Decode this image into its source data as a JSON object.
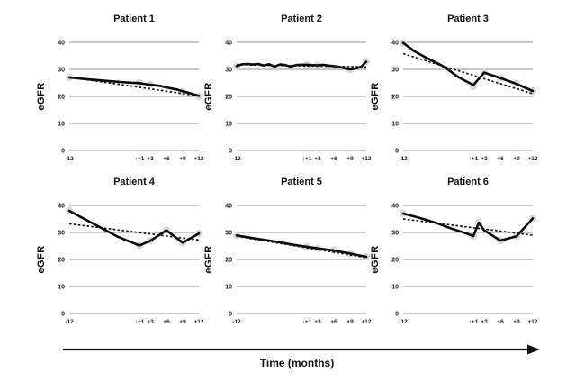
{
  "figure": {
    "xlabel": "Time (months)"
  },
  "axis": {
    "ylabel": "eGFR",
    "ylim": [
      0,
      40
    ],
    "yticks": [
      0,
      10,
      20,
      30,
      40
    ],
    "xticks": [
      {
        "label": "-12",
        "m": -12
      },
      {
        "label": "↑+1",
        "m": 1
      },
      {
        "label": "+3",
        "m": 3
      },
      {
        "label": "+6",
        "m": 6
      },
      {
        "label": "+9",
        "m": 9
      },
      {
        "label": "+12",
        "m": 12
      }
    ]
  },
  "colors": {
    "grid": "#a8a8a8",
    "line": "#0b0b0b",
    "marker": "#d8d8d8",
    "trend": "#161616"
  },
  "chart_data": [
    {
      "type": "line",
      "title": "Patient 1",
      "xlabel": "Time (months)",
      "ylabel": "eGFR",
      "ylim": [
        0,
        40
      ],
      "series": [
        {
          "name": "eGFR",
          "style": "solid",
          "points": [
            [
              -12,
              27
            ],
            [
              -9,
              26.4
            ],
            [
              -6,
              25.9
            ],
            [
              -3,
              25.4
            ],
            [
              -1,
              25.1
            ],
            [
              1,
              24.9
            ],
            [
              3,
              24.3
            ],
            [
              5,
              23.8
            ],
            [
              6,
              23.3
            ],
            [
              7,
              22.9
            ],
            [
              8,
              22.5
            ],
            [
              9,
              21.9
            ],
            [
              10,
              21.4
            ],
            [
              11,
              20.8
            ],
            [
              12,
              20.2
            ]
          ]
        },
        {
          "name": "visit markers",
          "style": "markers",
          "points": [
            [
              -12,
              27
            ],
            [
              1,
              25
            ],
            [
              3,
              24.4
            ],
            [
              9,
              21.6
            ],
            [
              12,
              20.1
            ]
          ]
        },
        {
          "name": "linear trend",
          "style": "dashed",
          "points": [
            [
              -12,
              27.1
            ],
            [
              12,
              20.2
            ]
          ]
        }
      ]
    },
    {
      "type": "line",
      "title": "Patient 2",
      "xlabel": "Time (months)",
      "ylabel": "eGFR",
      "ylim": [
        0,
        40
      ],
      "series": [
        {
          "name": "eGFR",
          "style": "solid",
          "points": [
            [
              -12,
              31.2
            ],
            [
              -11,
              31.9
            ],
            [
              -10,
              32
            ],
            [
              -9,
              31.8
            ],
            [
              -8,
              32
            ],
            [
              -7,
              31.4
            ],
            [
              -6,
              31.9
            ],
            [
              -5,
              31
            ],
            [
              -4,
              31.8
            ],
            [
              -3,
              31.6
            ],
            [
              -2,
              31
            ],
            [
              -1,
              31.6
            ],
            [
              0,
              31.7
            ],
            [
              1,
              31.7
            ],
            [
              2,
              31.6
            ],
            [
              3,
              31.5
            ],
            [
              4,
              31.7
            ],
            [
              5,
              31.4
            ],
            [
              6,
              31.2
            ],
            [
              7,
              30.9
            ],
            [
              8,
              30.4
            ],
            [
              9,
              30
            ],
            [
              10,
              30.3
            ],
            [
              11,
              30.9
            ],
            [
              12,
              32.8
            ]
          ]
        },
        {
          "name": "visit markers",
          "style": "markers",
          "points": [
            [
              -12,
              31.1
            ],
            [
              1,
              31.6
            ],
            [
              3,
              31.5
            ],
            [
              9,
              29.9
            ],
            [
              12,
              32.9
            ]
          ]
        },
        {
          "name": "linear trend",
          "style": "dashed",
          "points": [
            [
              -12,
              31.7
            ],
            [
              12,
              30.9
            ]
          ]
        }
      ]
    },
    {
      "type": "line",
      "title": "Patient 3",
      "xlabel": "Time (months)",
      "ylabel": "eGFR",
      "ylim": [
        0,
        40
      ],
      "series": [
        {
          "name": "eGFR",
          "style": "solid",
          "points": [
            [
              -12,
              39.8
            ],
            [
              -10,
              36.8
            ],
            [
              -8,
              34.6
            ],
            [
              -6,
              32.6
            ],
            [
              -5,
              31.6
            ],
            [
              -4,
              30.4
            ],
            [
              -3,
              28.9
            ],
            [
              -2,
              27.4
            ],
            [
              -1,
              26.3
            ],
            [
              1,
              24.2
            ],
            [
              3,
              28.8
            ],
            [
              6,
              26.8
            ],
            [
              9,
              24.6
            ],
            [
              12,
              22
            ]
          ]
        },
        {
          "name": "visit markers",
          "style": "markers",
          "points": [
            [
              -12,
              39.8
            ],
            [
              1,
              23.7
            ],
            [
              3,
              28.8
            ],
            [
              6,
              26.8
            ],
            [
              9,
              24.8
            ],
            [
              12,
              22
            ]
          ]
        },
        {
          "name": "linear trend",
          "style": "dashed",
          "points": [
            [
              -12,
              35.8
            ],
            [
              12,
              21
            ]
          ]
        }
      ]
    },
    {
      "type": "line",
      "title": "Patient 4",
      "xlabel": "Time (months)",
      "ylabel": "eGFR",
      "ylim": [
        0,
        40
      ],
      "series": [
        {
          "name": "eGFR",
          "style": "solid",
          "points": [
            [
              -12,
              38
            ],
            [
              -9,
              34.8
            ],
            [
              -6,
              31.6
            ],
            [
              -3,
              28.4
            ],
            [
              1,
              25.2
            ],
            [
              3,
              26.9
            ],
            [
              6,
              30.8
            ],
            [
              9,
              26.2
            ],
            [
              12,
              29.6
            ]
          ]
        },
        {
          "name": "visit markers",
          "style": "markers",
          "points": [
            [
              -12,
              38
            ],
            [
              1,
              25.2
            ],
            [
              3,
              26.9
            ],
            [
              6,
              30.8
            ],
            [
              9,
              26.2
            ],
            [
              12,
              29.6
            ]
          ]
        },
        {
          "name": "linear trend",
          "style": "dashed",
          "points": [
            [
              -12,
              33.2
            ],
            [
              12,
              27.2
            ]
          ]
        }
      ]
    },
    {
      "type": "line",
      "title": "Patient 5",
      "xlabel": "Time (months)",
      "ylabel": "eGFR",
      "ylim": [
        0,
        40
      ],
      "series": [
        {
          "name": "eGFR",
          "style": "solid",
          "points": [
            [
              -12,
              28.9
            ],
            [
              -9,
              27.9
            ],
            [
              -6,
              27
            ],
            [
              -3,
              26
            ],
            [
              -1,
              25.3
            ],
            [
              1,
              24.7
            ],
            [
              3,
              24.1
            ],
            [
              6,
              23.3
            ],
            [
              9,
              22.2
            ],
            [
              12,
              21
            ]
          ]
        },
        {
          "name": "visit markers",
          "style": "markers",
          "points": [
            [
              -12,
              28.9
            ],
            [
              1,
              24.7
            ],
            [
              3,
              24.1
            ],
            [
              6,
              23.4
            ],
            [
              9,
              22.2
            ],
            [
              12,
              21
            ]
          ]
        },
        {
          "name": "linear trend",
          "style": "dashed",
          "points": [
            [
              -12,
              28.6
            ],
            [
              12,
              20.7
            ]
          ]
        }
      ]
    },
    {
      "type": "line",
      "title": "Patient 6",
      "xlabel": "Time (months)",
      "ylabel": "eGFR",
      "ylim": [
        0,
        40
      ],
      "series": [
        {
          "name": "eGFR",
          "style": "solid",
          "points": [
            [
              -12,
              37
            ],
            [
              -9,
              35.4
            ],
            [
              -6,
              33.6
            ],
            [
              -3,
              31.4
            ],
            [
              -1,
              30.1
            ],
            [
              1,
              28.7
            ],
            [
              2,
              33.6
            ],
            [
              3,
              30.8
            ],
            [
              6,
              27
            ],
            [
              9,
              28.6
            ],
            [
              12,
              35.2
            ]
          ]
        },
        {
          "name": "visit markers",
          "style": "markers",
          "points": [
            [
              -12,
              37
            ],
            [
              1,
              28.7
            ],
            [
              2,
              33.6
            ],
            [
              6,
              27
            ],
            [
              9,
              28.6
            ],
            [
              12,
              35.2
            ]
          ]
        },
        {
          "name": "linear trend",
          "style": "dashed",
          "points": [
            [
              -12,
              35
            ],
            [
              12,
              29
            ]
          ]
        }
      ]
    }
  ]
}
